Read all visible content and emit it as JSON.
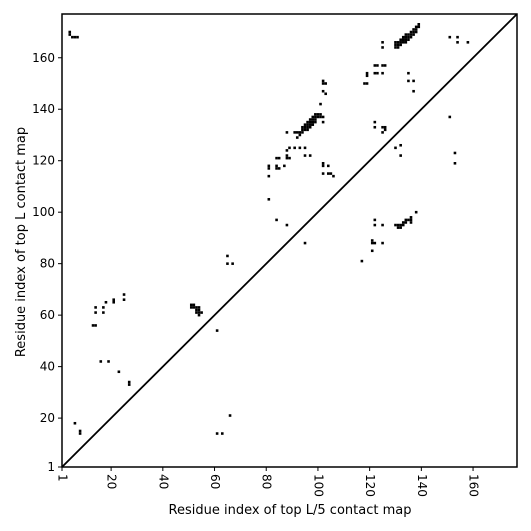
{
  "chart_data": {
    "type": "scatter",
    "title": "",
    "xlabel": "Residue index of top L/5 contact map",
    "ylabel": "Residue index of top L contact map",
    "xlim": [
      1,
      177
    ],
    "ylim": [
      1,
      177
    ],
    "xticks": [
      1,
      20,
      40,
      60,
      80,
      100,
      120,
      140,
      160
    ],
    "yticks": [
      1,
      20,
      40,
      60,
      80,
      100,
      120,
      140,
      160
    ],
    "grid": false,
    "diagonal": true,
    "marker": "square",
    "color": "#000000",
    "series": [
      {
        "points": [
          [
            4,
            169
          ],
          [
            4,
            170
          ],
          [
            5,
            168
          ],
          [
            6,
            168
          ],
          [
            7,
            168
          ],
          [
            6,
            18
          ],
          [
            8,
            14
          ],
          [
            8,
            15
          ],
          [
            13,
            56
          ],
          [
            14,
            56
          ],
          [
            14,
            61
          ],
          [
            14,
            63
          ],
          [
            16,
            42
          ],
          [
            17,
            61
          ],
          [
            17,
            63
          ],
          [
            18,
            65
          ],
          [
            19,
            42
          ],
          [
            21,
            65
          ],
          [
            21,
            66
          ],
          [
            23,
            38
          ],
          [
            25,
            66
          ],
          [
            25,
            68
          ],
          [
            27,
            33
          ],
          [
            27,
            34
          ],
          [
            51,
            63
          ],
          [
            51,
            64
          ],
          [
            52,
            63
          ],
          [
            52,
            64
          ],
          [
            53,
            61
          ],
          [
            53,
            62
          ],
          [
            53,
            63
          ],
          [
            54,
            60
          ],
          [
            54,
            61
          ],
          [
            54,
            62
          ],
          [
            54,
            63
          ],
          [
            55,
            61
          ],
          [
            61,
            54
          ],
          [
            61,
            14
          ],
          [
            63,
            14
          ],
          [
            65,
            80
          ],
          [
            65,
            83
          ],
          [
            66,
            21
          ],
          [
            67,
            80
          ],
          [
            81,
            105
          ],
          [
            81,
            114
          ],
          [
            81,
            117
          ],
          [
            81,
            118
          ],
          [
            84,
            97
          ],
          [
            84,
            117
          ],
          [
            84,
            118
          ],
          [
            84,
            121
          ],
          [
            85,
            117
          ],
          [
            85,
            121
          ],
          [
            87,
            118
          ],
          [
            88,
            95
          ],
          [
            88,
            121
          ],
          [
            88,
            122
          ],
          [
            88,
            124
          ],
          [
            88,
            131
          ],
          [
            89,
            121
          ],
          [
            89,
            125
          ],
          [
            91,
            125
          ],
          [
            91,
            131
          ],
          [
            92,
            129
          ],
          [
            92,
            131
          ],
          [
            93,
            125
          ],
          [
            93,
            130
          ],
          [
            93,
            131
          ],
          [
            94,
            131
          ],
          [
            94,
            132
          ],
          [
            94,
            133
          ],
          [
            95,
            88
          ],
          [
            95,
            122
          ],
          [
            95,
            125
          ],
          [
            95,
            132
          ],
          [
            95,
            133
          ],
          [
            95,
            134
          ],
          [
            96,
            132
          ],
          [
            96,
            133
          ],
          [
            96,
            134
          ],
          [
            96,
            135
          ],
          [
            97,
            122
          ],
          [
            97,
            133
          ],
          [
            97,
            134
          ],
          [
            97,
            135
          ],
          [
            97,
            136
          ],
          [
            98,
            134
          ],
          [
            98,
            135
          ],
          [
            98,
            136
          ],
          [
            98,
            137
          ],
          [
            99,
            135
          ],
          [
            99,
            136
          ],
          [
            99,
            137
          ],
          [
            99,
            138
          ],
          [
            100,
            137
          ],
          [
            100,
            138
          ],
          [
            101,
            137
          ],
          [
            101,
            138
          ],
          [
            101,
            142
          ],
          [
            102,
            115
          ],
          [
            102,
            118
          ],
          [
            102,
            119
          ],
          [
            102,
            135
          ],
          [
            102,
            137
          ],
          [
            102,
            147
          ],
          [
            102,
            150
          ],
          [
            102,
            151
          ],
          [
            103,
            146
          ],
          [
            103,
            150
          ],
          [
            104,
            115
          ],
          [
            104,
            118
          ],
          [
            105,
            115
          ],
          [
            106,
            114
          ],
          [
            117,
            81
          ],
          [
            118,
            150
          ],
          [
            119,
            150
          ],
          [
            119,
            153
          ],
          [
            119,
            154
          ],
          [
            121,
            85
          ],
          [
            121,
            88
          ],
          [
            121,
            89
          ],
          [
            122,
            88
          ],
          [
            122,
            95
          ],
          [
            122,
            97
          ],
          [
            122,
            133
          ],
          [
            122,
            135
          ],
          [
            122,
            154
          ],
          [
            122,
            157
          ],
          [
            123,
            154
          ],
          [
            123,
            157
          ],
          [
            125,
            88
          ],
          [
            125,
            95
          ],
          [
            125,
            131
          ],
          [
            125,
            133
          ],
          [
            125,
            154
          ],
          [
            125,
            157
          ],
          [
            125,
            164
          ],
          [
            125,
            166
          ],
          [
            126,
            132
          ],
          [
            126,
            133
          ],
          [
            126,
            157
          ],
          [
            130,
            95
          ],
          [
            130,
            125
          ],
          [
            130,
            164
          ],
          [
            130,
            165
          ],
          [
            130,
            166
          ],
          [
            131,
            94
          ],
          [
            131,
            95
          ],
          [
            131,
            164
          ],
          [
            131,
            165
          ],
          [
            131,
            166
          ],
          [
            132,
            94
          ],
          [
            132,
            95
          ],
          [
            132,
            122
          ],
          [
            132,
            126
          ],
          [
            132,
            165
          ],
          [
            132,
            166
          ],
          [
            132,
            167
          ],
          [
            133,
            95
          ],
          [
            133,
            96
          ],
          [
            133,
            166
          ],
          [
            133,
            167
          ],
          [
            133,
            168
          ],
          [
            134,
            96
          ],
          [
            134,
            97
          ],
          [
            134,
            166
          ],
          [
            134,
            167
          ],
          [
            134,
            168
          ],
          [
            134,
            169
          ],
          [
            135,
            97
          ],
          [
            135,
            151
          ],
          [
            135,
            154
          ],
          [
            135,
            167
          ],
          [
            135,
            168
          ],
          [
            135,
            169
          ],
          [
            136,
            96
          ],
          [
            136,
            97
          ],
          [
            136,
            98
          ],
          [
            136,
            168
          ],
          [
            136,
            169
          ],
          [
            136,
            170
          ],
          [
            137,
            147
          ],
          [
            137,
            151
          ],
          [
            137,
            169
          ],
          [
            137,
            170
          ],
          [
            137,
            171
          ],
          [
            138,
            100
          ],
          [
            138,
            170
          ],
          [
            138,
            171
          ],
          [
            138,
            172
          ],
          [
            139,
            172
          ],
          [
            139,
            173
          ],
          [
            151,
            137
          ],
          [
            151,
            168
          ],
          [
            153,
            119
          ],
          [
            153,
            123
          ],
          [
            154,
            166
          ],
          [
            154,
            168
          ],
          [
            158,
            166
          ]
        ]
      }
    ]
  }
}
